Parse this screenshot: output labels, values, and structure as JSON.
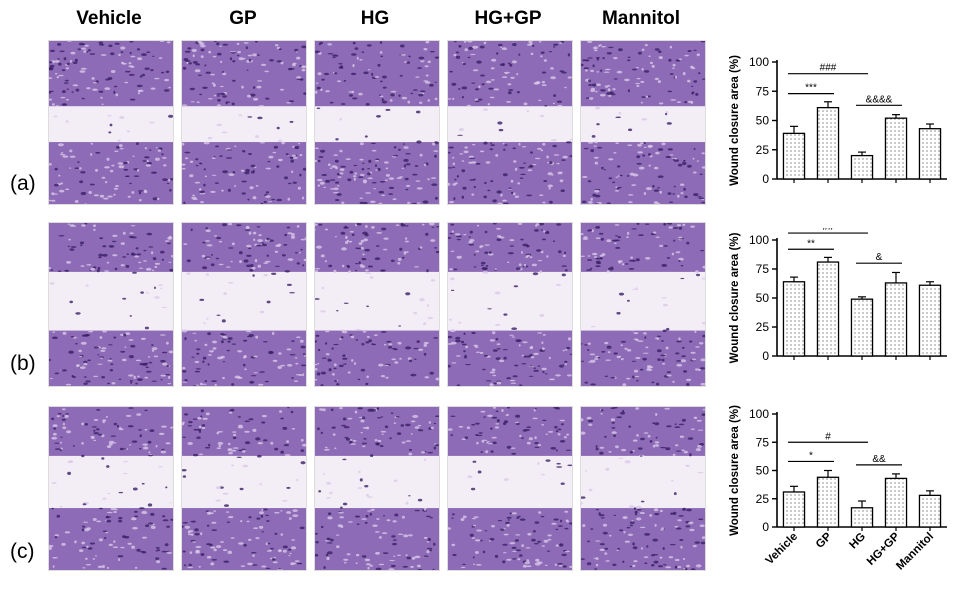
{
  "column_headers": [
    "Vehicle",
    "GP",
    "HG",
    "HG+GP",
    "Mannitol"
  ],
  "rows": [
    {
      "label": "(a)",
      "id": "a"
    },
    {
      "label": "(b)",
      "id": "b"
    },
    {
      "label": "(c)",
      "id": "c"
    }
  ],
  "colors": {
    "stain": "#6b3fa0",
    "stain_dark": "#3a1f66",
    "gap": "#f3eef6",
    "fill_pattern": "#444444"
  },
  "chart_data": [
    {
      "type": "bar",
      "panel": "a",
      "categories": [
        "Vehicle",
        "GP",
        "HG",
        "HG+GP",
        "Mannitol"
      ],
      "values": [
        39,
        61,
        20,
        52,
        43
      ],
      "errors": [
        6,
        5,
        3,
        3,
        4
      ],
      "ylabel": "Wound closure area (%)",
      "ylim": [
        0,
        100
      ],
      "yticks": [
        0,
        25,
        50,
        75,
        100
      ],
      "annotations": [
        {
          "text": "###",
          "from": 0,
          "to": 2,
          "level": 90
        },
        {
          "text": "***",
          "from": 0,
          "to": 1,
          "level": 73
        },
        {
          "text": "&&&&",
          "from": 2,
          "to": 3,
          "level": 63
        }
      ],
      "show_xticklabels": false
    },
    {
      "type": "bar",
      "panel": "b",
      "categories": [
        "Vehicle",
        "GP",
        "HG",
        "HG+GP",
        "Mannitol"
      ],
      "values": [
        64,
        81,
        49,
        63,
        61
      ],
      "errors": [
        4,
        4,
        2,
        9,
        3
      ],
      "ylabel": "Wound closure area (%)",
      "ylim": [
        0,
        100
      ],
      "yticks": [
        0,
        25,
        50,
        75,
        100
      ],
      "annotations": [
        {
          "text": "##",
          "from": 0,
          "to": 2,
          "level": 106
        },
        {
          "text": "**",
          "from": 0,
          "to": 1,
          "level": 92
        },
        {
          "text": "&",
          "from": 2,
          "to": 3,
          "level": 80
        }
      ],
      "show_xticklabels": false
    },
    {
      "type": "bar",
      "panel": "c",
      "categories": [
        "Vehicle",
        "GP",
        "HG",
        "HG+GP",
        "Mannitol"
      ],
      "values": [
        31,
        44,
        17,
        43,
        28
      ],
      "errors": [
        5,
        6,
        6,
        4,
        4
      ],
      "ylabel": "Wound closure area (%)",
      "ylim": [
        0,
        100
      ],
      "yticks": [
        0,
        25,
        50,
        75,
        100
      ],
      "annotations": [
        {
          "text": "#",
          "from": 0,
          "to": 2,
          "level": 75
        },
        {
          "text": "*",
          "from": 0,
          "to": 1,
          "level": 58
        },
        {
          "text": "&&",
          "from": 2,
          "to": 3,
          "level": 55
        }
      ],
      "show_xticklabels": true
    }
  ]
}
